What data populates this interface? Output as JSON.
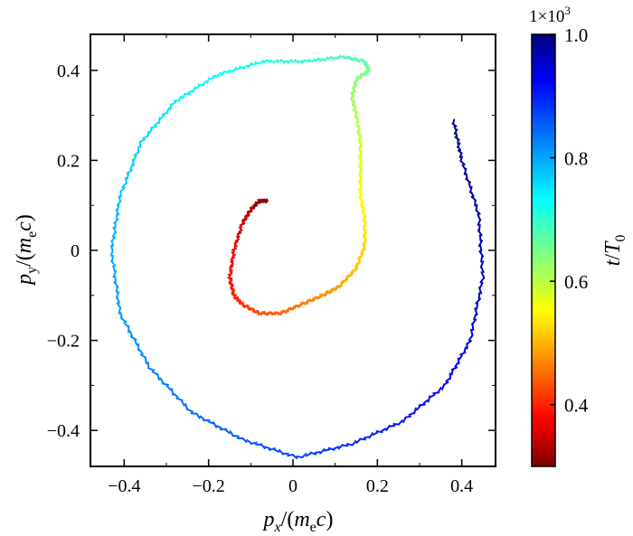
{
  "chart_data": {
    "type": "line",
    "xlabel": "p_x/(m_e c)",
    "ylabel": "p_y/(m_e c)",
    "xlim": [
      -0.48,
      0.48
    ],
    "ylim": [
      -0.48,
      0.48
    ],
    "x_ticks": [
      "−0.4",
      "−0.2",
      "0",
      "0.2",
      "0.4"
    ],
    "y_ticks": [
      "−0.4",
      "−0.2",
      "0",
      "0.2",
      "0.4"
    ],
    "x_tick_values": [
      -0.4,
      -0.2,
      0,
      0.2,
      0.4
    ],
    "y_tick_values": [
      -0.4,
      -0.2,
      0,
      0.2,
      0.4
    ],
    "colorbar": {
      "label": "t/T_0",
      "multiplier": "1×10³",
      "range": [
        0.3,
        1.0
      ],
      "ticks": [
        "0.4",
        "0.6",
        "0.8",
        "1.0"
      ],
      "tick_values": [
        0.4,
        0.6,
        0.8,
        1.0
      ],
      "colormap": "jet"
    },
    "series": [
      {
        "values_note_excluded": true,
        "x": [
          -0.06,
          -0.08,
          -0.1,
          -0.12,
          -0.14,
          -0.15,
          -0.14,
          -0.12,
          -0.08,
          -0.03,
          0.02,
          0.07,
          0.11,
          0.15,
          0.17,
          0.17,
          0.16,
          0.16,
          0.16,
          0.15,
          0.14,
          0.15,
          0.18,
          0.17,
          0.12,
          0.03,
          -0.07,
          -0.18,
          -0.28,
          -0.36,
          -0.41,
          -0.43,
          -0.41,
          -0.34,
          -0.24,
          -0.12,
          0.01,
          0.14,
          0.26,
          0.36,
          0.42,
          0.45,
          0.44,
          0.4,
          0.38
        ],
        "y": [
          0.11,
          0.11,
          0.09,
          0.06,
          0.0,
          -0.06,
          -0.1,
          -0.12,
          -0.14,
          -0.14,
          -0.12,
          -0.1,
          -0.08,
          -0.04,
          0.01,
          0.07,
          0.12,
          0.18,
          0.24,
          0.3,
          0.34,
          0.38,
          0.4,
          0.42,
          0.43,
          0.42,
          0.42,
          0.39,
          0.33,
          0.24,
          0.12,
          0.0,
          -0.14,
          -0.26,
          -0.36,
          -0.42,
          -0.46,
          -0.43,
          -0.38,
          -0.3,
          -0.2,
          -0.06,
          0.08,
          0.2,
          0.29
        ],
        "t": [
          0.3,
          0.316,
          0.332,
          0.348,
          0.364,
          0.38,
          0.396,
          0.412,
          0.428,
          0.444,
          0.46,
          0.476,
          0.492,
          0.508,
          0.524,
          0.54,
          0.556,
          0.572,
          0.588,
          0.604,
          0.62,
          0.636,
          0.652,
          0.668,
          0.684,
          0.7,
          0.716,
          0.732,
          0.748,
          0.764,
          0.78,
          0.796,
          0.812,
          0.828,
          0.844,
          0.86,
          0.876,
          0.892,
          0.908,
          0.924,
          0.94,
          0.956,
          0.972,
          0.988,
          1.0
        ]
      }
    ]
  }
}
